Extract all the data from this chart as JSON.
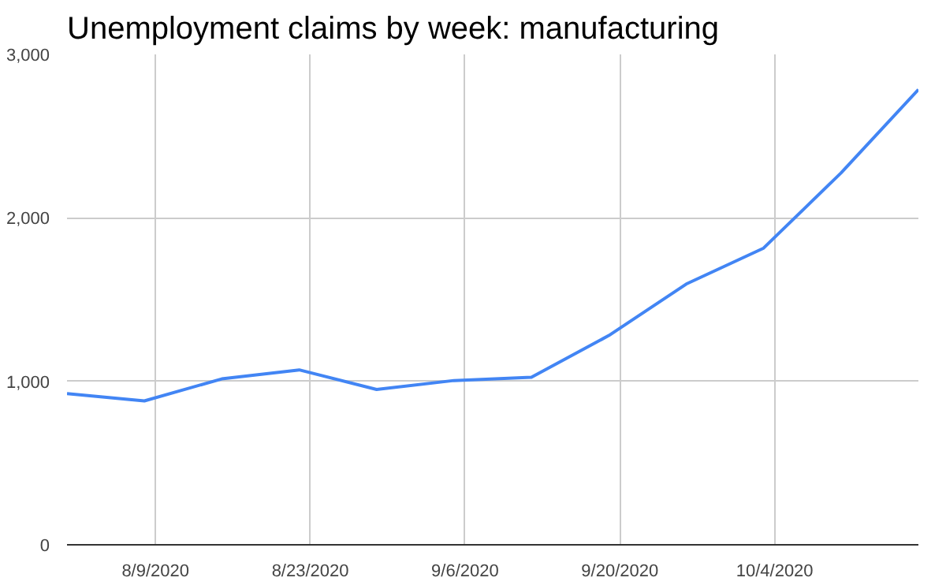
{
  "chart_data": {
    "type": "line",
    "title": "Unemployment claims by week: manufacturing",
    "x": [
      "2020-08-01",
      "2020-08-08",
      "2020-08-15",
      "2020-08-22",
      "2020-08-29",
      "2020-09-05",
      "2020-09-12",
      "2020-09-19",
      "2020-09-26",
      "2020-10-03",
      "2020-10-10",
      "2020-10-17"
    ],
    "series": [
      {
        "color": "#4285f4",
        "values": [
          925,
          880,
          1015,
          1070,
          950,
          1005,
          1025,
          1280,
          1595,
          1815,
          2275,
          2785
        ]
      }
    ],
    "xlim": [
      "2020-08-01",
      "2020-10-17"
    ],
    "xticks": [
      {
        "value": "2020-08-09",
        "label": "8/9/2020"
      },
      {
        "value": "2020-08-23",
        "label": "8/23/2020"
      },
      {
        "value": "2020-09-06",
        "label": "9/6/2020"
      },
      {
        "value": "2020-09-20",
        "label": "9/20/2020"
      },
      {
        "value": "2020-10-04",
        "label": "10/4/2020"
      }
    ],
    "ylim": [
      0,
      3000
    ],
    "yticks": [
      0,
      {
        "value": 1000,
        "label": "1,000"
      },
      {
        "value": 2000,
        "label": "2,000"
      },
      {
        "value": 3000,
        "label": "3,000"
      }
    ],
    "grid": true,
    "marker": "none",
    "line_style": "solid"
  }
}
